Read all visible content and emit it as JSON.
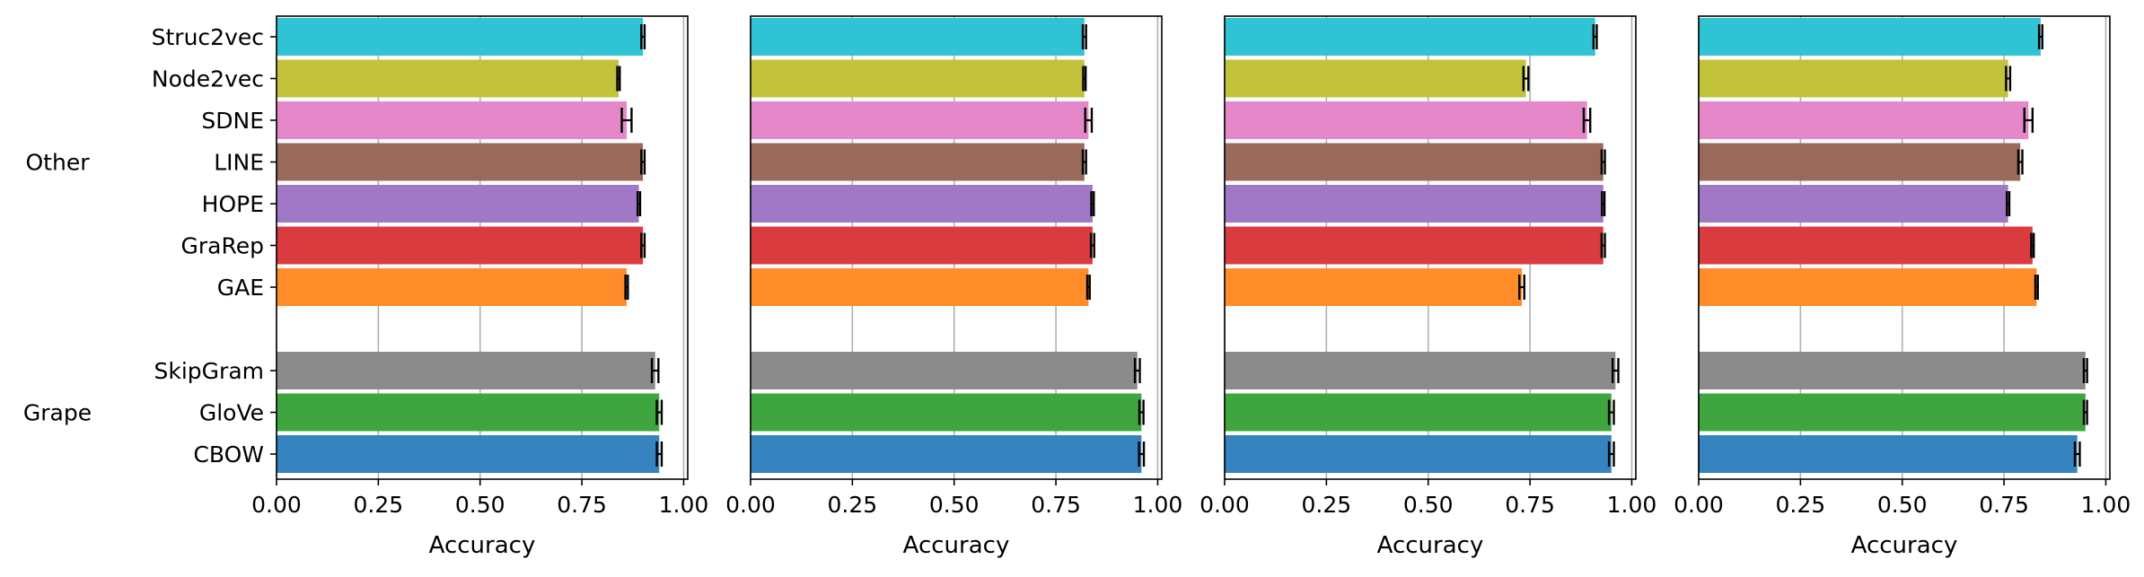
{
  "chart_data": {
    "type": "bar",
    "orientation": "horizontal",
    "categories": [
      "Struc2vec",
      "Node2vec",
      "SDNE",
      "LINE",
      "HOPE",
      "GraRep",
      "GAE",
      "SkipGram",
      "GloVe",
      "CBOW"
    ],
    "groups": [
      {
        "name": "Other",
        "categories": [
          "Struc2vec",
          "Node2vec",
          "SDNE",
          "LINE",
          "HOPE",
          "GraRep",
          "GAE"
        ]
      },
      {
        "name": "Grape",
        "categories": [
          "SkipGram",
          "GloVe",
          "CBOW"
        ]
      }
    ],
    "colors": {
      "Struc2vec": "#2fc3d3",
      "Node2vec": "#c2c23b",
      "SDNE": "#e587c8",
      "LINE": "#996a5c",
      "HOPE": "#a078c6",
      "GraRep": "#d93b3e",
      "GAE": "#ff8c28",
      "SkipGram": "#8b8b8b",
      "GloVe": "#3fa63f",
      "CBOW": "#3584bf"
    },
    "xlabel": "Accuracy",
    "xlim": [
      0.0,
      1.01
    ],
    "xticks": [
      "0.00",
      "0.25",
      "0.50",
      "0.75",
      "1.00"
    ],
    "grid": "x",
    "panels": [
      {
        "values": [
          0.9,
          0.84,
          0.86,
          0.9,
          0.89,
          0.9,
          0.86,
          0.93,
          0.94,
          0.94
        ],
        "errors": [
          0.004,
          0.003,
          0.012,
          0.004,
          0.003,
          0.004,
          0.003,
          0.008,
          0.006,
          0.006
        ]
      },
      {
        "values": [
          0.82,
          0.82,
          0.83,
          0.82,
          0.84,
          0.84,
          0.83,
          0.95,
          0.96,
          0.96
        ],
        "errors": [
          0.004,
          0.003,
          0.008,
          0.004,
          0.003,
          0.004,
          0.003,
          0.006,
          0.005,
          0.006
        ]
      },
      {
        "values": [
          0.91,
          0.74,
          0.89,
          0.93,
          0.93,
          0.93,
          0.73,
          0.96,
          0.95,
          0.95
        ],
        "errors": [
          0.004,
          0.006,
          0.008,
          0.004,
          0.003,
          0.004,
          0.006,
          0.007,
          0.006,
          0.006
        ]
      },
      {
        "values": [
          0.84,
          0.76,
          0.81,
          0.79,
          0.76,
          0.82,
          0.83,
          0.95,
          0.95,
          0.93
        ],
        "errors": [
          0.004,
          0.005,
          0.01,
          0.005,
          0.003,
          0.003,
          0.003,
          0.004,
          0.004,
          0.006
        ]
      }
    ]
  }
}
